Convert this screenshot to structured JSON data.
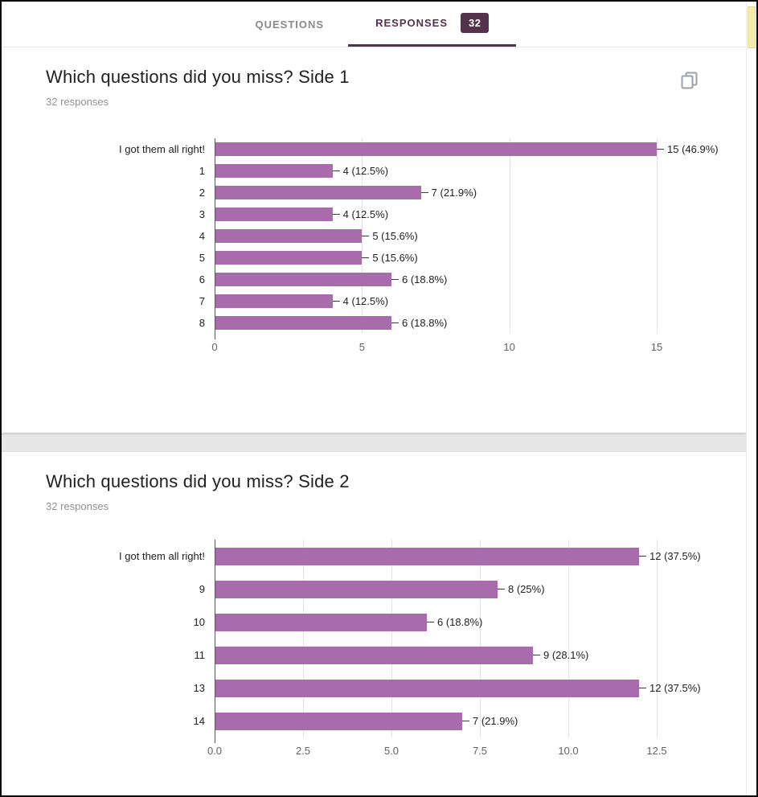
{
  "tabs": {
    "questions": "QUESTIONS",
    "responses": "RESPONSES",
    "badge": "32"
  },
  "cards": [
    {
      "title": "Which questions did you miss? Side 1",
      "responses_label": "32 responses"
    },
    {
      "title": "Which questions did you miss? Side 2",
      "responses_label": "32 responses"
    }
  ],
  "colors": {
    "accent": "#54324e",
    "bar": "#a86bab"
  },
  "chart_data": [
    {
      "type": "bar",
      "orientation": "horizontal",
      "title": "Which questions did you miss? Side 1",
      "categories": [
        "I got them all right!",
        "1",
        "2",
        "3",
        "4",
        "5",
        "6",
        "7",
        "8"
      ],
      "values": [
        15,
        4,
        7,
        4,
        5,
        5,
        6,
        4,
        6
      ],
      "labels": [
        "15 (46.9%)",
        "4 (12.5%)",
        "7 (21.9%)",
        "4 (12.5%)",
        "5 (15.6%)",
        "5 (15.6%)",
        "6 (18.8%)",
        "4 (12.5%)",
        "6 (18.8%)"
      ],
      "x_ticks": [
        "0",
        "5",
        "10",
        "15"
      ],
      "xlim": [
        0,
        15
      ],
      "grid": true,
      "legend": "none"
    },
    {
      "type": "bar",
      "orientation": "horizontal",
      "title": "Which questions did you miss? Side 2",
      "categories": [
        "I got them all right!",
        "9",
        "10",
        "11",
        "13",
        "14"
      ],
      "values": [
        12,
        8,
        6,
        9,
        12,
        7
      ],
      "labels": [
        "12 (37.5%)",
        "8 (25%)",
        "6 (18.8%)",
        "9 (28.1%)",
        "12 (37.5%)",
        "7 (21.9%)"
      ],
      "x_ticks": [
        "0.0",
        "2.5",
        "5.0",
        "7.5",
        "10.0",
        "12.5"
      ],
      "xlim": [
        0,
        12.5
      ],
      "grid": true,
      "legend": "none"
    }
  ]
}
